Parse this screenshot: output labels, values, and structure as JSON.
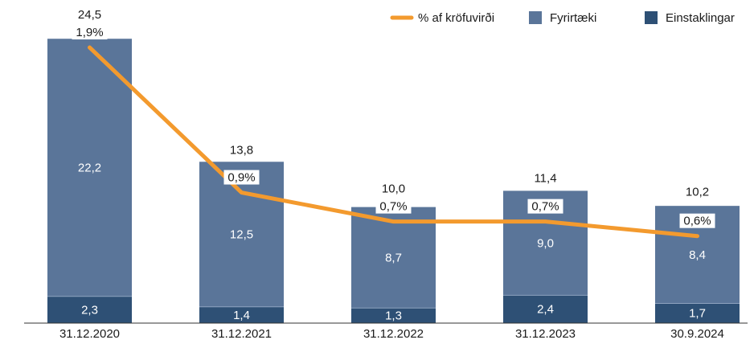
{
  "chart_data": {
    "type": "bar",
    "stacked": true,
    "categories": [
      "31.12.2020",
      "31.12.2021",
      "31.12.2022",
      "31.12.2023",
      "30.9.2024"
    ],
    "series": [
      {
        "name": "Einstaklingar",
        "color": "#2e5075",
        "values": [
          2.3,
          1.4,
          1.3,
          2.4,
          1.7
        ],
        "value_labels": [
          "2,3",
          "1,4",
          "1,3",
          "2,4",
          "1,7"
        ]
      },
      {
        "name": "Fyrirtæki",
        "color": "#5a7599",
        "values": [
          22.2,
          12.5,
          8.7,
          9.0,
          8.4
        ],
        "value_labels": [
          "22,2",
          "12,5",
          "8,7",
          "9,0",
          "8,4"
        ]
      },
      {
        "name": "% af kröfuvirði",
        "type": "line",
        "axis": "y2",
        "color": "#f39a2e",
        "values": [
          1.9,
          0.9,
          0.7,
          0.7,
          0.6
        ],
        "value_labels": [
          "1,9%",
          "0,9%",
          "0,7%",
          "0,7%",
          "0,6%"
        ]
      }
    ],
    "totals": {
      "values": [
        24.5,
        13.8,
        10.0,
        11.4,
        10.2
      ],
      "value_labels": [
        "24,5",
        "13,8",
        "10,0",
        "11,4",
        "10,2"
      ]
    },
    "ylim": [
      0,
      25
    ],
    "y2lim": [
      0,
      2
    ],
    "legend": "top-right"
  }
}
